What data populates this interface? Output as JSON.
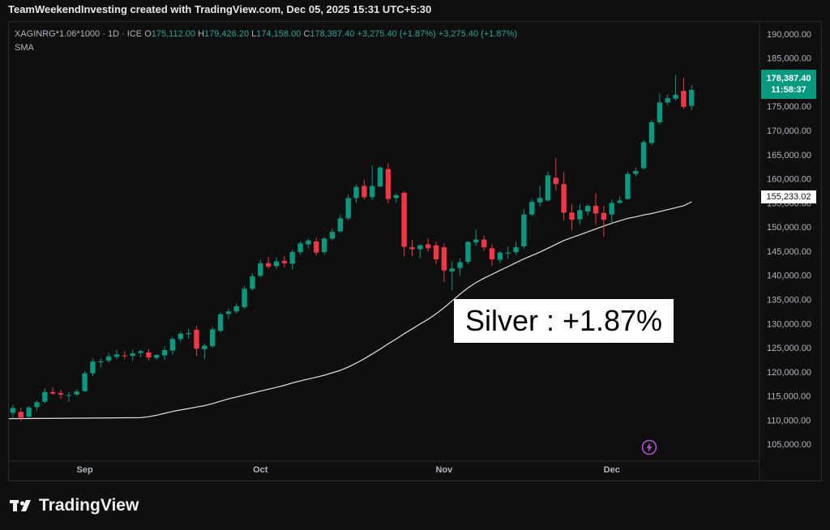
{
  "header": {
    "text": "TeamWeekendInvesting created with TradingView.com, Dec 05, 2025 15:31 UTC+5:30"
  },
  "legend": {
    "symbol": "XAGINRG*1.06*1000 · 1D · ICE",
    "o_label": "O",
    "o_value": "175,112.00",
    "h_label": "H",
    "h_value": "179,426.20",
    "l_label": "L",
    "l_value": "174,158.00",
    "c_label": "C",
    "c_value": "178,387.40",
    "change": "+3,275.40 (+1.87%)",
    "change2": "+3,275.40 (+1.87%)",
    "indicator": "SMA"
  },
  "price_badge": {
    "price": "178,387.40",
    "countdown": "11:58:37"
  },
  "sma_badge": {
    "value": "155,233.02"
  },
  "annotation": {
    "text": "Silver : +1.87%"
  },
  "logo": {
    "text": "TradingView"
  },
  "colors": {
    "up": "#089981",
    "down": "#f23645",
    "sma": "#e0e0e0",
    "background": "#0f0f0f",
    "bolt": "#b04ed6"
  },
  "chart_data": {
    "type": "candlestick",
    "yaxis": {
      "ticks": [
        105000,
        110000,
        115000,
        120000,
        125000,
        130000,
        135000,
        140000,
        145000,
        150000,
        155000,
        160000,
        165000,
        170000,
        175000,
        180000,
        185000,
        190000
      ],
      "tick_labels": [
        "105,000.00",
        "110,000.00",
        "115,000.00",
        "120,000.00",
        "125,000.00",
        "130,000.00",
        "135,000.00",
        "140,000.00",
        "145,000.00",
        "150,000.00",
        "155,000.00",
        "160,000.00",
        "165,000.00",
        "170,000.00",
        "175,000.00",
        "180,000.00",
        "185,000.00",
        "190,000.00"
      ],
      "range": [
        101500,
        192500
      ]
    },
    "xaxis": {
      "labels": [
        {
          "text": "Sep",
          "i": 9
        },
        {
          "text": "Oct",
          "i": 31
        },
        {
          "text": "Nov",
          "i": 54
        },
        {
          "text": "Dec",
          "i": 75
        }
      ],
      "range": [
        -0.5,
        93.5
      ]
    },
    "candles": [
      {
        "o": 111500,
        "h": 113200,
        "l": 110300,
        "c": 112500
      },
      {
        "o": 111700,
        "h": 112600,
        "l": 109800,
        "c": 110500
      },
      {
        "o": 110700,
        "h": 112900,
        "l": 110400,
        "c": 112600
      },
      {
        "o": 112700,
        "h": 114000,
        "l": 112000,
        "c": 113700
      },
      {
        "o": 113800,
        "h": 116600,
        "l": 113500,
        "c": 115800
      },
      {
        "o": 115800,
        "h": 116800,
        "l": 115200,
        "c": 115500
      },
      {
        "o": 115600,
        "h": 116300,
        "l": 114400,
        "c": 115300
      },
      {
        "o": 115200,
        "h": 115800,
        "l": 113800,
        "c": 115200
      },
      {
        "o": 115300,
        "h": 116400,
        "l": 115000,
        "c": 115900
      },
      {
        "o": 116000,
        "h": 120200,
        "l": 115800,
        "c": 119700
      },
      {
        "o": 119700,
        "h": 122800,
        "l": 119100,
        "c": 122100
      },
      {
        "o": 122000,
        "h": 122800,
        "l": 120900,
        "c": 122200
      },
      {
        "o": 122300,
        "h": 123900,
        "l": 121900,
        "c": 123200
      },
      {
        "o": 123100,
        "h": 124500,
        "l": 122600,
        "c": 123600
      },
      {
        "o": 123400,
        "h": 124300,
        "l": 122600,
        "c": 123300
      },
      {
        "o": 123300,
        "h": 124600,
        "l": 122300,
        "c": 123800
      },
      {
        "o": 123900,
        "h": 124600,
        "l": 123000,
        "c": 124300
      },
      {
        "o": 124000,
        "h": 124700,
        "l": 122300,
        "c": 123000
      },
      {
        "o": 122900,
        "h": 123600,
        "l": 122500,
        "c": 123500
      },
      {
        "o": 123400,
        "h": 125300,
        "l": 122500,
        "c": 124500
      },
      {
        "o": 124400,
        "h": 127300,
        "l": 123500,
        "c": 126800
      },
      {
        "o": 126800,
        "h": 128300,
        "l": 126200,
        "c": 127900
      },
      {
        "o": 127800,
        "h": 128900,
        "l": 126900,
        "c": 128000
      },
      {
        "o": 128700,
        "h": 129500,
        "l": 123300,
        "c": 124800
      },
      {
        "o": 124700,
        "h": 125900,
        "l": 122600,
        "c": 125400
      },
      {
        "o": 125300,
        "h": 129300,
        "l": 125000,
        "c": 128800
      },
      {
        "o": 128500,
        "h": 132400,
        "l": 128200,
        "c": 131900
      },
      {
        "o": 132000,
        "h": 133100,
        "l": 131000,
        "c": 132500
      },
      {
        "o": 132500,
        "h": 134200,
        "l": 132000,
        "c": 133600
      },
      {
        "o": 133400,
        "h": 137800,
        "l": 133100,
        "c": 137200
      },
      {
        "o": 137200,
        "h": 140400,
        "l": 136900,
        "c": 139800
      },
      {
        "o": 139900,
        "h": 143200,
        "l": 139600,
        "c": 142500
      },
      {
        "o": 142500,
        "h": 143800,
        "l": 141400,
        "c": 141800
      },
      {
        "o": 141900,
        "h": 143700,
        "l": 141300,
        "c": 142900
      },
      {
        "o": 143000,
        "h": 144000,
        "l": 141600,
        "c": 142500
      },
      {
        "o": 142400,
        "h": 145300,
        "l": 141200,
        "c": 144800
      },
      {
        "o": 144800,
        "h": 147000,
        "l": 144300,
        "c": 146600
      },
      {
        "o": 146400,
        "h": 147600,
        "l": 145600,
        "c": 147200
      },
      {
        "o": 147000,
        "h": 147800,
        "l": 144100,
        "c": 144700
      },
      {
        "o": 144800,
        "h": 147900,
        "l": 144300,
        "c": 147600
      },
      {
        "o": 147600,
        "h": 149700,
        "l": 147200,
        "c": 149000
      },
      {
        "o": 149100,
        "h": 152600,
        "l": 148800,
        "c": 151800
      },
      {
        "o": 151800,
        "h": 156700,
        "l": 151400,
        "c": 156000
      },
      {
        "o": 156000,
        "h": 158800,
        "l": 155000,
        "c": 158300
      },
      {
        "o": 158500,
        "h": 159800,
        "l": 155700,
        "c": 156200
      },
      {
        "o": 156200,
        "h": 162700,
        "l": 155600,
        "c": 158500
      },
      {
        "o": 158400,
        "h": 162600,
        "l": 158200,
        "c": 162300
      },
      {
        "o": 162000,
        "h": 163200,
        "l": 154900,
        "c": 155800
      },
      {
        "o": 156000,
        "h": 157000,
        "l": 155000,
        "c": 156600
      },
      {
        "o": 157100,
        "h": 157400,
        "l": 143900,
        "c": 145900
      },
      {
        "o": 145800,
        "h": 147300,
        "l": 143900,
        "c": 145400
      },
      {
        "o": 145400,
        "h": 146400,
        "l": 143600,
        "c": 146200
      },
      {
        "o": 146400,
        "h": 147600,
        "l": 144900,
        "c": 145600
      },
      {
        "o": 146200,
        "h": 147000,
        "l": 142300,
        "c": 143300
      },
      {
        "o": 145800,
        "h": 146600,
        "l": 138600,
        "c": 141000
      },
      {
        "o": 140800,
        "h": 142900,
        "l": 136800,
        "c": 141400
      },
      {
        "o": 141500,
        "h": 143500,
        "l": 139900,
        "c": 142700
      },
      {
        "o": 142800,
        "h": 147100,
        "l": 142300,
        "c": 146900
      },
      {
        "o": 146800,
        "h": 149500,
        "l": 146100,
        "c": 147400
      },
      {
        "o": 147400,
        "h": 148200,
        "l": 145100,
        "c": 145800
      },
      {
        "o": 145600,
        "h": 146400,
        "l": 141900,
        "c": 143300
      },
      {
        "o": 143200,
        "h": 145000,
        "l": 142500,
        "c": 144700
      },
      {
        "o": 144500,
        "h": 145900,
        "l": 143400,
        "c": 144700
      },
      {
        "o": 144800,
        "h": 147000,
        "l": 144200,
        "c": 145800
      },
      {
        "o": 146000,
        "h": 153700,
        "l": 145500,
        "c": 152600
      },
      {
        "o": 152600,
        "h": 155800,
        "l": 152200,
        "c": 155200
      },
      {
        "o": 155100,
        "h": 158500,
        "l": 154200,
        "c": 156000
      },
      {
        "o": 155500,
        "h": 161500,
        "l": 155300,
        "c": 160700
      },
      {
        "o": 160200,
        "h": 164300,
        "l": 157600,
        "c": 158900
      },
      {
        "o": 158900,
        "h": 161400,
        "l": 151300,
        "c": 153000
      },
      {
        "o": 153000,
        "h": 154700,
        "l": 149300,
        "c": 151500
      },
      {
        "o": 151600,
        "h": 154800,
        "l": 150500,
        "c": 153500
      },
      {
        "o": 153200,
        "h": 154700,
        "l": 152400,
        "c": 154400
      },
      {
        "o": 154400,
        "h": 157000,
        "l": 150500,
        "c": 152800
      },
      {
        "o": 152900,
        "h": 154400,
        "l": 148000,
        "c": 151500
      },
      {
        "o": 152600,
        "h": 155600,
        "l": 150500,
        "c": 155000
      },
      {
        "o": 155000,
        "h": 156400,
        "l": 154800,
        "c": 155500
      },
      {
        "o": 155800,
        "h": 161500,
        "l": 155700,
        "c": 161000
      },
      {
        "o": 161000,
        "h": 162400,
        "l": 160500,
        "c": 161600
      },
      {
        "o": 162200,
        "h": 168000,
        "l": 161900,
        "c": 167600
      },
      {
        "o": 167400,
        "h": 172200,
        "l": 167000,
        "c": 171700
      },
      {
        "o": 171700,
        "h": 177700,
        "l": 171300,
        "c": 175800
      },
      {
        "o": 175800,
        "h": 177500,
        "l": 175200,
        "c": 176700
      },
      {
        "o": 176600,
        "h": 181500,
        "l": 176200,
        "c": 177400
      },
      {
        "o": 178200,
        "h": 180900,
        "l": 174500,
        "c": 174900
      },
      {
        "o": 175100,
        "h": 179400,
        "l": 174200,
        "c": 178400
      }
    ],
    "sma": {
      "name": "SMA",
      "values": [
        110500,
        110700,
        111000,
        111400,
        111800,
        112100,
        112400,
        112700,
        113000,
        113400,
        113900,
        114400,
        114800,
        115200,
        115600,
        116000,
        116400,
        116800,
        117200,
        117700,
        118100,
        118500,
        118900,
        119300,
        119800,
        120300,
        121000,
        121800,
        122700,
        123700,
        124700,
        125800,
        126800,
        127900,
        128900,
        129900,
        130900,
        132000,
        133300,
        134700,
        136100,
        137400,
        138500,
        139400,
        140200,
        141000,
        141800,
        142600,
        143400,
        144100,
        144800,
        145600,
        146400,
        147200,
        147800,
        148400,
        149000,
        149600,
        150200,
        150800,
        151300,
        151800,
        152100,
        152500,
        152800,
        153200,
        153600,
        154000,
        154400,
        155233
      ]
    }
  }
}
